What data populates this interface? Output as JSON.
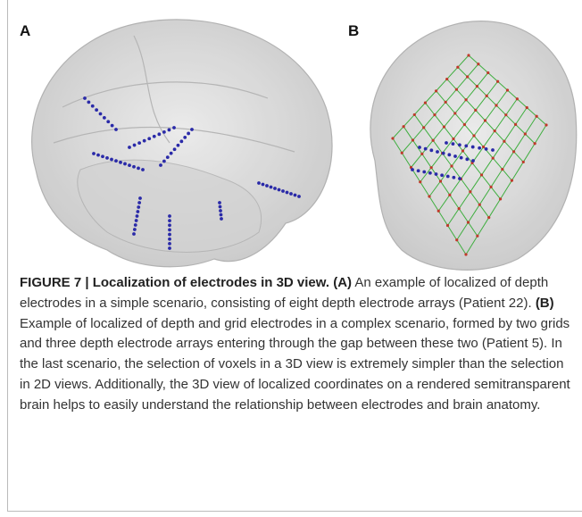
{
  "figure": {
    "panels": [
      "A",
      "B"
    ],
    "caption": {
      "title": "FIGURE 7 | Localization of electrodes in 3D view.",
      "a_label": "(A)",
      "a_text": "An example of localized of depth electrodes in a simple scenario, consisting of eight depth electrode arrays (Patient 22).",
      "b_label": "(B)",
      "b_text": "Example of localized of depth and grid electrodes in a complex scenario, formed by two grids and three depth electrode arrays entering through the gap between these two (Patient 5). In the last scenario, the selection of voxels in a 3D view is extremely simpler than the selection in 2D views. Additionally, the 3D view of localized coordinates on a rendered semitransparent brain helps to easily understand the relationship between electrodes and brain anatomy."
    }
  }
}
